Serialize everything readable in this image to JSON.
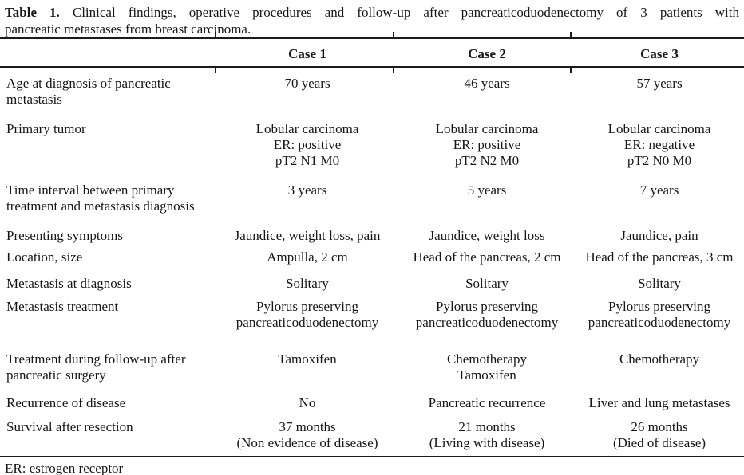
{
  "caption": {
    "label": "Table 1.",
    "line1_rest": " Clinical findings, operative procedures and follow-up after pancreaticoduodenectomy of 3 patients with",
    "line2": "pancreatic metastases from breast carcinoma."
  },
  "table": {
    "columns": [
      "",
      "Case 1",
      "Case 2",
      "Case 3"
    ],
    "rows": [
      {
        "label": [
          "Age at diagnosis of pancreatic",
          "metastasis"
        ],
        "case1": [
          "70 years"
        ],
        "case2": [
          "46 years"
        ],
        "case3": [
          "57 years"
        ]
      },
      {
        "label": [
          "Primary tumor"
        ],
        "case1": [
          "Lobular carcinoma",
          "ER: positive",
          "pT2 N1 M0"
        ],
        "case2": [
          "Lobular carcinoma",
          "ER: positive",
          "pT2 N2 M0"
        ],
        "case3": [
          "Lobular carcinoma",
          "ER: negative",
          "pT2 N0 M0"
        ]
      },
      {
        "label": [
          "Time interval between primary",
          "treatment and metastasis diagnosis"
        ],
        "case1": [
          "3 years"
        ],
        "case2": [
          "5 years"
        ],
        "case3": [
          "7 years"
        ]
      },
      {
        "label": [
          "Presenting symptoms"
        ],
        "case1": [
          "Jaundice, weight loss, pain"
        ],
        "case2": [
          "Jaundice, weight loss"
        ],
        "case3": [
          "Jaundice, pain"
        ]
      },
      {
        "label": [
          "Location, size"
        ],
        "case1": [
          "Ampulla, 2 cm"
        ],
        "case2": [
          "Head of the pancreas, 2 cm"
        ],
        "case3": [
          "Head of the pancreas, 3 cm"
        ]
      },
      {
        "label": [
          "Metastasis at diagnosis"
        ],
        "case1": [
          "Solitary"
        ],
        "case2": [
          "Solitary"
        ],
        "case3": [
          "Solitary"
        ]
      },
      {
        "label": [
          "Metastasis treatment"
        ],
        "case1": [
          "Pylorus preserving",
          "pancreaticoduodenectomy"
        ],
        "case2": [
          "Pylorus preserving",
          "pancreaticoduodenectomy"
        ],
        "case3": [
          "Pylorus preserving",
          "pancreaticoduodenectomy"
        ]
      },
      {
        "label": [
          "Treatment during follow-up after",
          "pancreatic surgery"
        ],
        "case1": [
          "Tamoxifen"
        ],
        "case2": [
          "Chemotherapy",
          "Tamoxifen"
        ],
        "case3": [
          "Chemotherapy"
        ]
      },
      {
        "label": [
          "Recurrence of disease"
        ],
        "case1": [
          "No"
        ],
        "case2": [
          "Pancreatic recurrence"
        ],
        "case3": [
          "Liver and lung metastases"
        ]
      },
      {
        "label": [
          "Survival after resection"
        ],
        "case1": [
          "37 months",
          "(Non evidence of disease)"
        ],
        "case2": [
          "21 months",
          "(Living with disease)"
        ],
        "case3": [
          "26 months",
          "(Died of disease)"
        ]
      }
    ]
  },
  "footnote": "ER: estrogen receptor",
  "colors": {
    "background": "#ffffff",
    "ink": "#161616",
    "rule": "#1b1b1b"
  }
}
